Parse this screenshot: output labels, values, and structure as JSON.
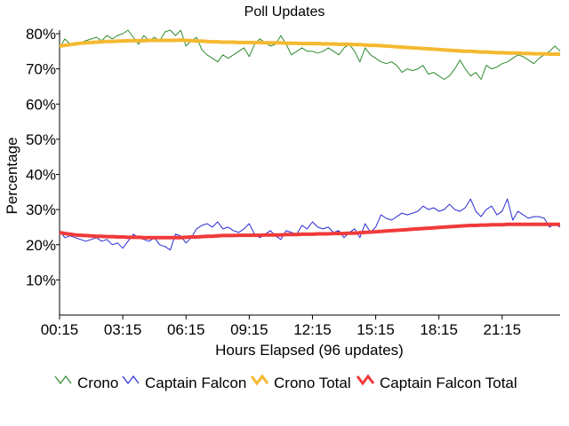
{
  "chart_data": {
    "type": "line",
    "title": "Poll Updates",
    "xlabel": "Hours Elapsed (96 updates)",
    "ylabel": "Percentage",
    "ylim": [
      0,
      80
    ],
    "y_ticks": [
      "10%",
      "20%",
      "30%",
      "40%",
      "50%",
      "60%",
      "70%",
      "80%"
    ],
    "y_tick_values": [
      10,
      20,
      30,
      40,
      50,
      60,
      70,
      80
    ],
    "x_ticks": [
      "00:15",
      "03:15",
      "06:15",
      "09:15",
      "12:15",
      "15:15",
      "18:15",
      "21:15"
    ],
    "x_tick_index": [
      0,
      12,
      24,
      36,
      48,
      60,
      72,
      84
    ],
    "n_points": 96,
    "grid": false,
    "legend_position": "bottom",
    "series": [
      {
        "name": "Crono",
        "color": "#2e8b2e",
        "values": [
          76,
          78.5,
          77,
          77.5,
          77.5,
          78,
          78.5,
          79,
          78,
          79.5,
          78.5,
          79.5,
          80,
          81,
          79,
          77,
          79.5,
          78,
          79,
          78,
          80.5,
          81,
          79.5,
          81,
          76.5,
          78,
          79,
          75.5,
          74,
          73,
          72,
          74,
          73,
          74,
          75,
          76,
          73.5,
          77,
          78.5,
          77.5,
          76.5,
          77,
          79.5,
          77,
          74,
          75,
          76,
          75,
          75,
          74.5,
          75,
          76,
          75,
          74,
          76,
          77,
          75,
          72,
          76,
          74,
          73,
          72,
          71.5,
          72,
          71,
          69,
          70,
          69.5,
          70,
          71,
          68.5,
          69,
          68,
          67,
          68,
          70,
          72.5,
          70,
          68,
          69,
          67,
          71,
          70,
          70.5,
          71.5,
          72,
          73,
          74,
          73.5,
          72.5,
          71.5,
          73,
          74,
          75,
          76.5,
          75
        ]
      },
      {
        "name": "Captain Falcon",
        "color": "#2b2bd6",
        "values": [
          24,
          22,
          22.5,
          22,
          21.5,
          21,
          21.5,
          22,
          21,
          21.5,
          20,
          20.5,
          19,
          21,
          23,
          22,
          21.5,
          21,
          22,
          20,
          19.5,
          18.5,
          23,
          22.5,
          20.5,
          22,
          24.5,
          25.5,
          26,
          25,
          26.5,
          24.5,
          25,
          24,
          23.5,
          24.5,
          26,
          23,
          22,
          23,
          24,
          22.5,
          21.5,
          24,
          23.5,
          23,
          25.5,
          24.5,
          26.5,
          25,
          24.5,
          25,
          23.5,
          24,
          22,
          23.5,
          24.5,
          22,
          26,
          23.5,
          25,
          28.5,
          27.5,
          27,
          28,
          29,
          28.5,
          29,
          29.5,
          31,
          30,
          30.5,
          29.5,
          30,
          31.5,
          30,
          29.5,
          30.5,
          33,
          29.5,
          28,
          30,
          31,
          28.5,
          29.5,
          33,
          27,
          29.5,
          28.5,
          27.5,
          28,
          28,
          27.5,
          25,
          26,
          25
        ]
      },
      {
        "name": "Crono Total",
        "color": "#f5b830",
        "values": [
          76.5,
          76.7,
          76.9,
          77.1,
          77.3,
          77.4,
          77.5,
          77.6,
          77.7,
          77.8,
          77.8,
          77.9,
          77.9,
          78.0,
          78.0,
          78.0,
          78.0,
          78.1,
          78.1,
          78.1,
          78.1,
          78.1,
          78.1,
          78.2,
          78.1,
          78.0,
          77.9,
          77.9,
          77.8,
          77.7,
          77.7,
          77.6,
          77.6,
          77.6,
          77.5,
          77.5,
          77.5,
          77.5,
          77.5,
          77.4,
          77.4,
          77.4,
          77.4,
          77.3,
          77.3,
          77.3,
          77.2,
          77.2,
          77.2,
          77.2,
          77.1,
          77.1,
          77.1,
          77.0,
          77.0,
          77.0,
          76.9,
          76.9,
          76.8,
          76.7,
          76.7,
          76.6,
          76.5,
          76.4,
          76.3,
          76.2,
          76.1,
          76.0,
          75.9,
          75.8,
          75.7,
          75.6,
          75.5,
          75.4,
          75.3,
          75.2,
          75.1,
          75.0,
          75.0,
          74.9,
          74.8,
          74.8,
          74.7,
          74.6,
          74.6,
          74.5,
          74.5,
          74.5,
          74.4,
          74.4,
          74.3,
          74.3,
          74.3,
          74.2,
          74.2,
          74.2
        ]
      },
      {
        "name": "Captain Falcon Total",
        "color": "#f03a3a",
        "values": [
          23.5,
          23.2,
          23.0,
          22.8,
          22.7,
          22.6,
          22.5,
          22.4,
          22.4,
          22.3,
          22.3,
          22.2,
          22.2,
          22.1,
          22.1,
          22.1,
          22.0,
          22.0,
          22.0,
          22.0,
          22.0,
          22.0,
          22.0,
          22.0,
          22.1,
          22.2,
          22.2,
          22.3,
          22.4,
          22.4,
          22.5,
          22.6,
          22.6,
          22.6,
          22.7,
          22.7,
          22.7,
          22.7,
          22.7,
          22.8,
          22.8,
          22.8,
          22.8,
          22.9,
          22.9,
          22.9,
          23.0,
          23.0,
          23.0,
          23.1,
          23.1,
          23.1,
          23.2,
          23.2,
          23.2,
          23.3,
          23.3,
          23.4,
          23.5,
          23.6,
          23.7,
          23.8,
          23.9,
          24.0,
          24.1,
          24.2,
          24.3,
          24.4,
          24.5,
          24.6,
          24.7,
          24.8,
          24.9,
          25.0,
          25.1,
          25.2,
          25.3,
          25.4,
          25.5,
          25.5,
          25.6,
          25.6,
          25.7,
          25.7,
          25.7,
          25.8,
          25.8,
          25.8,
          25.8,
          25.8,
          25.8,
          25.8,
          25.8,
          25.8,
          25.8,
          25.8
        ]
      }
    ]
  }
}
